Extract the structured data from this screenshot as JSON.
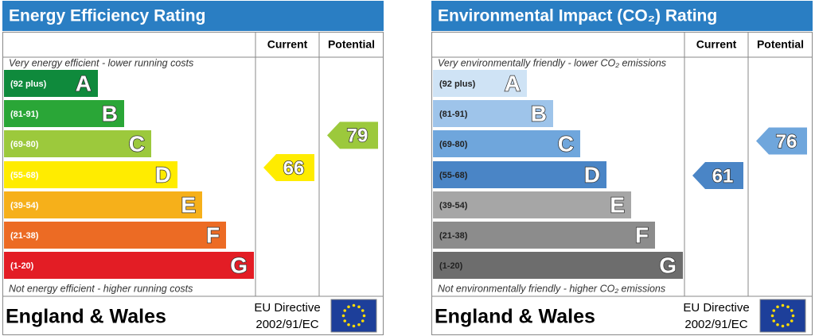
{
  "panels": [
    {
      "title": "Energy Efficiency Rating",
      "title_color": "#2a7ec3",
      "col_current": "Current",
      "col_potential": "Potential",
      "top_note": "Very energy efficient - lower running costs",
      "bottom_note": "Not energy efficient - higher running costs",
      "range_text_color": "#ffffff",
      "bands": [
        {
          "range": "(92 plus)",
          "letter": "A",
          "color": "#0f8a3c"
        },
        {
          "range": "(81-91)",
          "letter": "B",
          "color": "#2aa637"
        },
        {
          "range": "(69-80)",
          "letter": "C",
          "color": "#9cc93c"
        },
        {
          "range": "(55-68)",
          "letter": "D",
          "color": "#ffec00"
        },
        {
          "range": "(39-54)",
          "letter": "E",
          "color": "#f6b01a"
        },
        {
          "range": "(21-38)",
          "letter": "F",
          "color": "#ec6b24"
        },
        {
          "range": "(1-20)",
          "letter": "G",
          "color": "#e31d25"
        }
      ],
      "current": 66,
      "potential": 79,
      "region": "England & Wales",
      "directive_1": "EU Directive",
      "directive_2": "2002/91/EC"
    },
    {
      "title": "Environmental Impact (CO₂) Rating",
      "title_color": "#2a7ec3",
      "col_current": "Current",
      "col_potential": "Potential",
      "top_note": "Very environmentally friendly - lower CO₂ emissions",
      "bottom_note": "Not environmentally friendly - higher CO₂ emissions",
      "range_text_color": "#222222",
      "bands": [
        {
          "range": "(92 plus)",
          "letter": "A",
          "color": "#cfe3f5"
        },
        {
          "range": "(81-91)",
          "letter": "B",
          "color": "#9ec4ea"
        },
        {
          "range": "(69-80)",
          "letter": "C",
          "color": "#6fa6dc"
        },
        {
          "range": "(55-68)",
          "letter": "D",
          "color": "#4a85c6"
        },
        {
          "range": "(39-54)",
          "letter": "E",
          "color": "#a6a6a6"
        },
        {
          "range": "(21-38)",
          "letter": "F",
          "color": "#8c8c8c"
        },
        {
          "range": "(1-20)",
          "letter": "G",
          "color": "#6d6d6d"
        }
      ],
      "current": 61,
      "potential": 76,
      "region": "England & Wales",
      "directive_1": "EU Directive",
      "directive_2": "2002/91/EC"
    }
  ]
}
